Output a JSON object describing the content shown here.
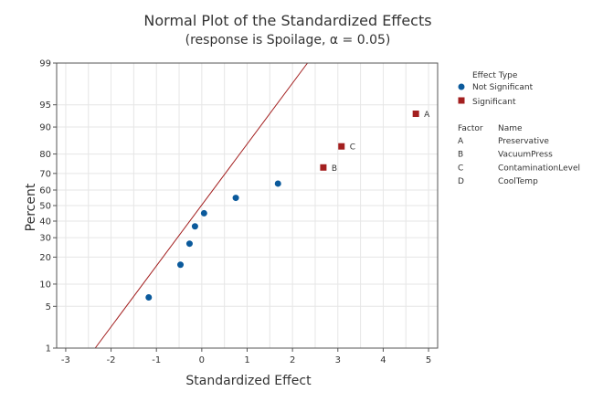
{
  "chart_data": {
    "type": "scatter",
    "title": "Normal Plot of the Standardized Effects",
    "subtitle": "(response is Spoilage, α = 0.05)",
    "xlabel": "Standardized Effect",
    "ylabel": "Percent",
    "xlim": [
      -3.2,
      5.2
    ],
    "xticks": [
      -3,
      -2,
      -1,
      0,
      1,
      2,
      3,
      4,
      5
    ],
    "ylim": [
      1,
      99
    ],
    "yscale": "normal-probability",
    "yticks": [
      1,
      5,
      10,
      20,
      30,
      40,
      50,
      60,
      70,
      80,
      90,
      95,
      99
    ],
    "grid": true,
    "fit_line": {
      "color": "#a31f1f",
      "points": [
        [
          -2.35,
          1
        ],
        [
          2.33,
          99
        ]
      ]
    },
    "series": [
      {
        "name": "Not Significant",
        "marker": "circle",
        "color": "#0b5a9c",
        "points": [
          {
            "x": -1.17,
            "y": 6.7
          },
          {
            "x": -0.47,
            "y": 16.7
          },
          {
            "x": -0.27,
            "y": 26.7
          },
          {
            "x": -0.15,
            "y": 36.7
          },
          {
            "x": 0.05,
            "y": 45.0
          },
          {
            "x": 0.75,
            "y": 55.0
          },
          {
            "x": 1.68,
            "y": 64.0
          }
        ]
      },
      {
        "name": "Significant",
        "marker": "square",
        "color": "#a31f1f",
        "points": [
          {
            "x": 2.68,
            "y": 73.3,
            "label": "B"
          },
          {
            "x": 3.08,
            "y": 83.3,
            "label": "C"
          },
          {
            "x": 4.72,
            "y": 93.3,
            "label": "A"
          }
        ]
      }
    ],
    "legend": {
      "placement": "right",
      "title": "Effect Type",
      "factor_header": "Factor",
      "name_header": "Name",
      "factors": [
        {
          "factor": "A",
          "name": "Preservative"
        },
        {
          "factor": "B",
          "name": "VacuumPress"
        },
        {
          "factor": "C",
          "name": "ContaminationLevel"
        },
        {
          "factor": "D",
          "name": "CoolTemp"
        }
      ]
    },
    "colors": {
      "grid": "#e6e6e6",
      "frame": "#555555",
      "text": "#333333"
    }
  }
}
